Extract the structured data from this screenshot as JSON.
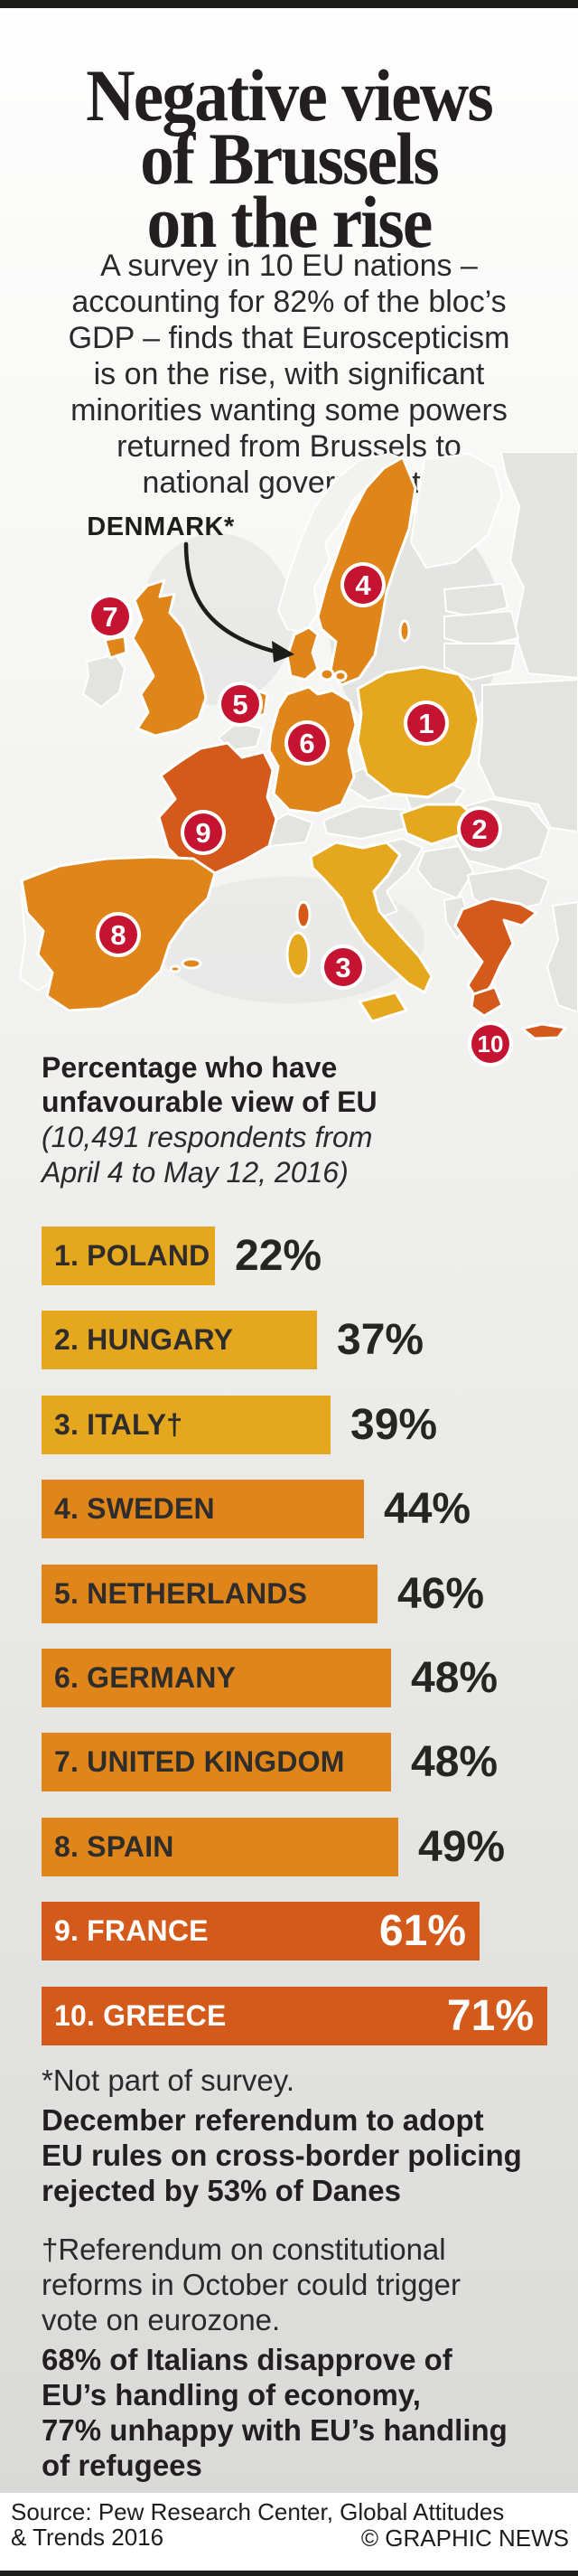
{
  "palette": {
    "gold": "#E5A71E",
    "orange": "#E08519",
    "dark_orange": "#D45A1B",
    "badge_red": "#C41431",
    "land_gray": "#E3E3DF",
    "land_light": "#F2F2EF",
    "ink": "#231F20"
  },
  "header": {
    "title": "Negative views\nof Brussels\non the rise",
    "intro": "A survey in 10 EU nations –\naccounting for 82% of the bloc’s\nGDP – finds that Euroscepticism\nis on the rise, with significant\nminorities wanting some powers\nreturned from Brussels to\nnational governments"
  },
  "map": {
    "denmark_label": "DENMARK*",
    "badges": [
      {
        "n": "1",
        "country": "Poland"
      },
      {
        "n": "2",
        "country": "Hungary"
      },
      {
        "n": "3",
        "country": "Italy"
      },
      {
        "n": "4",
        "country": "Sweden"
      },
      {
        "n": "5",
        "country": "Netherlands"
      },
      {
        "n": "6",
        "country": "Germany"
      },
      {
        "n": "7",
        "country": "United Kingdom"
      },
      {
        "n": "8",
        "country": "Spain"
      },
      {
        "n": "9",
        "country": "France"
      },
      {
        "n": "10",
        "country": "Greece"
      }
    ]
  },
  "chart": {
    "heading": "Percentage who have\nunfavourable view of EU",
    "subtitle": "(10,491 respondents from\nApril 4 to May 12, 2016)"
  },
  "chart_data": {
    "type": "bar",
    "orientation": "horizontal",
    "title": "Percentage who have unfavourable view of EU",
    "subtitle": "(10,491 respondents from April 4 to May 12, 2016)",
    "categories": [
      "1. POLAND",
      "2. HUNGARY",
      "3. ITALY†",
      "4. SWEDEN",
      "5. NETHERLANDS",
      "6. GERMANY",
      "7. UNITED KINGDOM",
      "8. SPAIN",
      "9. FRANCE",
      "10. GREECE"
    ],
    "values": [
      22,
      37,
      39,
      44,
      46,
      48,
      48,
      49,
      61,
      71
    ],
    "value_labels": [
      "22%",
      "37%",
      "39%",
      "44%",
      "46%",
      "48%",
      "48%",
      "49%",
      "61%",
      "71%"
    ],
    "colors": [
      "gold",
      "gold",
      "gold",
      "orange",
      "orange",
      "orange",
      "orange",
      "orange",
      "dark_orange",
      "dark_orange"
    ],
    "label_inside": [
      false,
      false,
      false,
      false,
      false,
      false,
      false,
      false,
      true,
      true
    ],
    "xlim": [
      0,
      100
    ],
    "grid": false,
    "legend": "none"
  },
  "footnotes": {
    "not_part": "*Not part of survey.",
    "december": "December referendum to adopt\nEU rules on cross-border policing\nrejected by 53% of Danes",
    "referendum": "†Referendum on constitutional\nreforms in October could trigger\nvote on eurozone.",
    "italians": "68% of Italians disapprove of\nEU’s handling of economy,\n77% unhappy with EU’s handling\nof refugees"
  },
  "source": {
    "text": "Source: Pew Research Center, Global Attitudes\n& Trends 2016",
    "credit": "© GRAPHIC NEWS"
  }
}
